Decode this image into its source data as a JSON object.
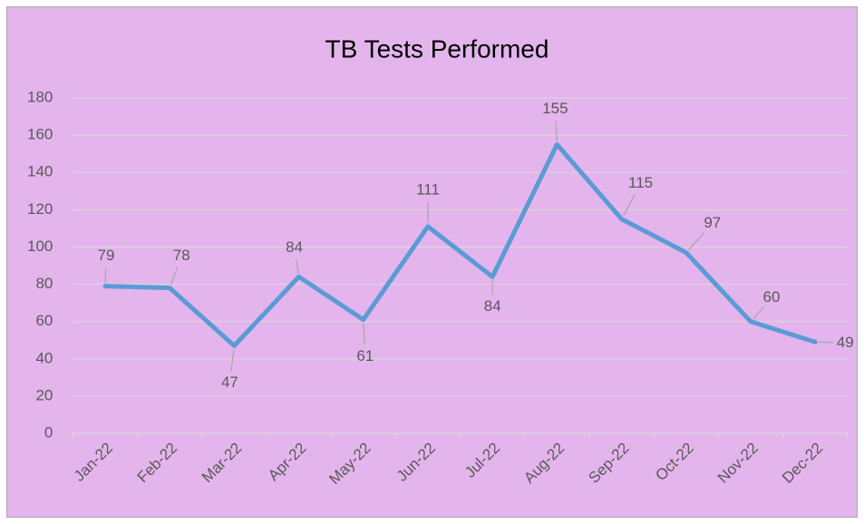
{
  "chart_data": {
    "type": "line",
    "title": "TB Tests Performed",
    "categories": [
      "Jan-22",
      "Feb-22",
      "Mar-22",
      "Apr-22",
      "May-22",
      "Jun-22",
      "Jul-22",
      "Aug-22",
      "Sep-22",
      "Oct-22",
      "Nov-22",
      "Dec-22"
    ],
    "series": [
      {
        "name": "TB Tests Performed",
        "color": "#5b9bd5",
        "values": [
          79,
          78,
          47,
          84,
          61,
          111,
          84,
          155,
          115,
          97,
          60,
          49
        ]
      }
    ],
    "ylim": [
      0,
      180
    ],
    "yticks": [
      0,
      20,
      40,
      60,
      80,
      100,
      120,
      140,
      160,
      180
    ],
    "grid": true,
    "legend": false
  }
}
